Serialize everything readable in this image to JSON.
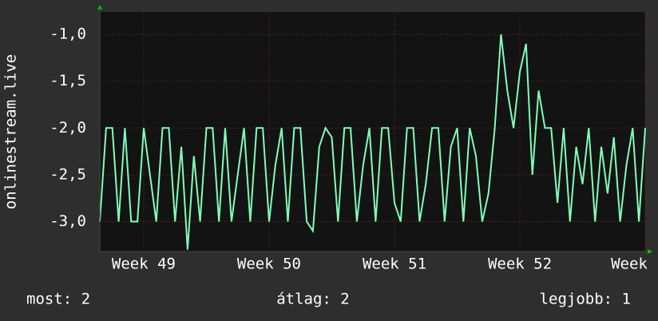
{
  "chart_data": {
    "type": "line",
    "y_label": "onlinestream.live",
    "x": [
      48.65,
      48.7,
      48.75,
      48.8,
      48.85,
      48.9,
      48.95,
      49,
      49.05,
      49.1,
      49.15,
      49.2,
      49.25,
      49.3,
      49.35,
      49.4,
      49.45,
      49.5,
      49.55,
      49.6,
      49.65,
      49.7,
      49.75,
      49.8,
      49.85,
      49.9,
      49.95,
      50,
      50.05,
      50.1,
      50.15,
      50.2,
      50.25,
      50.3,
      50.35,
      50.4,
      50.45,
      50.5,
      50.55,
      50.6,
      50.65,
      50.7,
      50.75,
      50.8,
      50.85,
      50.9,
      50.95,
      51,
      51.05,
      51.1,
      51.15,
      51.2,
      51.25,
      51.3,
      51.35,
      51.4,
      51.45,
      51.5,
      51.55,
      51.6,
      51.65,
      51.7,
      51.75,
      51.8,
      51.85,
      51.9,
      51.95,
      52,
      52.05,
      52.1,
      52.15,
      52.2,
      52.25,
      52.3,
      52.35,
      52.4,
      52.45,
      52.5,
      52.55,
      52.6,
      52.65,
      52.7,
      52.75,
      52.8,
      52.85,
      52.9,
      52.95,
      53
    ],
    "series": [
      {
        "color": "#80ffb8",
        "values": [
          -3,
          -2,
          -2,
          -3,
          -2,
          -3,
          -3,
          -2,
          -2.5,
          -3,
          -2,
          -2,
          -3,
          -2.2,
          -3.3,
          -2.3,
          -3,
          -2,
          -2,
          -3,
          -2,
          -3,
          -2.5,
          -2,
          -3,
          -2,
          -2,
          -3,
          -2.4,
          -2,
          -3,
          -2,
          -2,
          -3,
          -3.1,
          -2.2,
          -2,
          -2.1,
          -3,
          -2,
          -2,
          -3,
          -2.4,
          -2,
          -3,
          -2,
          -2,
          -2.8,
          -3,
          -2,
          -2,
          -3,
          -2.6,
          -2,
          -2,
          -3,
          -2.2,
          -2,
          -3,
          -2,
          -2.3,
          -3,
          -2.7,
          -2,
          -1.0,
          -1.6,
          -2,
          -1.4,
          -1.1,
          -2.5,
          -1.6,
          -2,
          -2,
          -2.8,
          -2,
          -3,
          -2.2,
          -2.6,
          -2,
          -3,
          -2.2,
          -2.7,
          -2.1,
          -3,
          -2.4,
          -2,
          -3,
          -2
        ]
      }
    ],
    "xlim": [
      48.65,
      53.0
    ],
    "xticks": [
      {
        "value": 49,
        "label": "Week 49"
      },
      {
        "value": 50,
        "label": "Week 50"
      },
      {
        "value": 51,
        "label": "Week 51"
      },
      {
        "value": 52,
        "label": "Week 52"
      },
      {
        "value": 53,
        "label": "Week"
      }
    ],
    "ylim": [
      -3.32,
      -0.76
    ],
    "yticks": [
      {
        "value": -3,
        "label": "-3,0"
      },
      {
        "value": -2.5,
        "label": "-2,5"
      },
      {
        "value": -2,
        "label": "-2,0"
      },
      {
        "value": -1.5,
        "label": "-1,5"
      },
      {
        "value": -1,
        "label": "-1,0"
      }
    ],
    "grid": true,
    "footer": {
      "current": "most: 2",
      "average": "átlag: 2",
      "best": "legjobb: 1"
    }
  }
}
